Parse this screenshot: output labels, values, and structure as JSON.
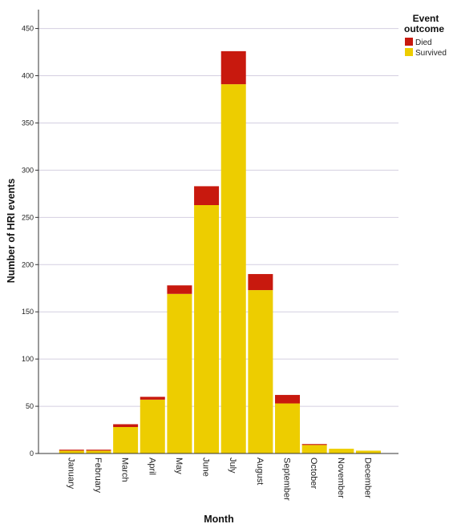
{
  "chart_data": {
    "type": "bar",
    "stacked": true,
    "title": "",
    "xlabel": "Month",
    "ylabel": "Number of HRI events",
    "ylim": [
      0,
      470
    ],
    "yticks": [
      0,
      50,
      100,
      150,
      200,
      250,
      300,
      350,
      400,
      450
    ],
    "grid": "horizontal",
    "legend": {
      "title_line1": "Event",
      "title_line2": "outcome",
      "placement": "top-right"
    },
    "categories": [
      "January",
      "February",
      "March",
      "April",
      "May",
      "June",
      "July",
      "August",
      "September",
      "October",
      "November",
      "December"
    ],
    "series": [
      {
        "name": "Survived",
        "color": "#EDCD00",
        "values": [
          3,
          3,
          28,
          57,
          169,
          263,
          391,
          173,
          53,
          9,
          5,
          3
        ]
      },
      {
        "name": "Died",
        "color": "#C8190E",
        "values": [
          1,
          1,
          3,
          3,
          9,
          20,
          35,
          17,
          9,
          1,
          0,
          0
        ]
      }
    ]
  }
}
